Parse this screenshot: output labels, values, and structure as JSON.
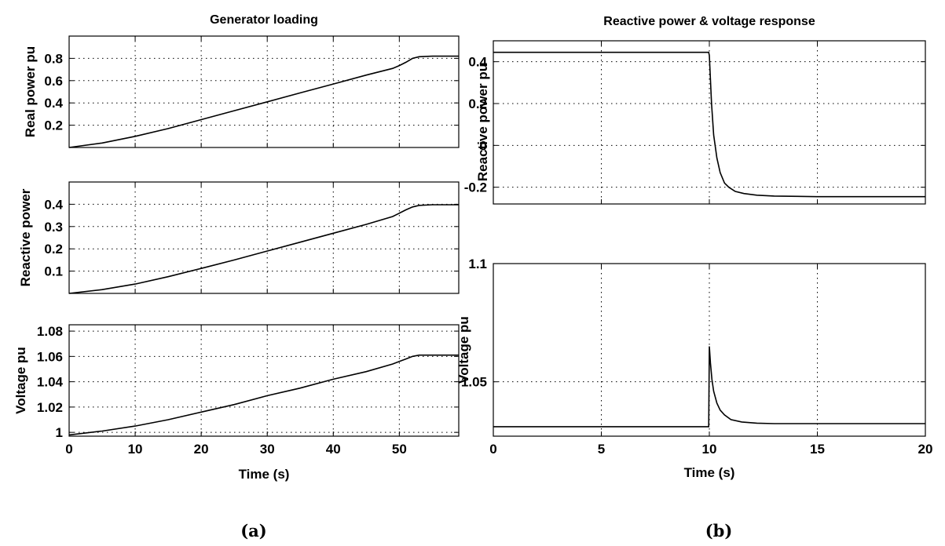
{
  "captions": [
    "(a)",
    "(b)"
  ],
  "chart_data": [
    {
      "type": "line",
      "title": "Generator loading",
      "xlabel": "",
      "ylabel": "Real power pu",
      "xlim": [
        0,
        59
      ],
      "ylim": [
        0,
        1.0
      ],
      "xticks": [
        0,
        10,
        20,
        30,
        40,
        50
      ],
      "xtick_labels": [
        "",
        "",
        "",
        "",
        "",
        ""
      ],
      "yticks": [
        0.2,
        0.4,
        0.6,
        0.8
      ],
      "ytick_labels": [
        "0.2",
        "0.4",
        "0.6",
        "0.8"
      ],
      "grid": true,
      "series": [
        {
          "x": [
            0,
            5,
            10,
            15,
            20,
            25,
            30,
            35,
            40,
            45,
            49,
            50,
            51,
            52,
            53,
            55,
            59
          ],
          "values": [
            0.0,
            0.04,
            0.1,
            0.17,
            0.25,
            0.33,
            0.41,
            0.49,
            0.57,
            0.65,
            0.71,
            0.735,
            0.765,
            0.8,
            0.815,
            0.82,
            0.82
          ]
        }
      ]
    },
    {
      "type": "line",
      "title": "",
      "xlabel": "",
      "ylabel": "Reactive power",
      "xlim": [
        0,
        59
      ],
      "ylim": [
        0,
        0.5
      ],
      "xticks": [
        0,
        10,
        20,
        30,
        40,
        50
      ],
      "xtick_labels": [
        "",
        "",
        "",
        "",
        "",
        ""
      ],
      "yticks": [
        0.1,
        0.2,
        0.3,
        0.4
      ],
      "ytick_labels": [
        "0.1",
        "0.2",
        "0.3",
        "0.4"
      ],
      "grid": true,
      "series": [
        {
          "x": [
            0,
            5,
            10,
            15,
            20,
            25,
            30,
            35,
            40,
            45,
            49,
            50,
            51,
            52,
            53,
            55,
            59
          ],
          "values": [
            0.0,
            0.017,
            0.042,
            0.075,
            0.112,
            0.15,
            0.19,
            0.23,
            0.27,
            0.31,
            0.345,
            0.36,
            0.375,
            0.388,
            0.395,
            0.398,
            0.398
          ]
        }
      ]
    },
    {
      "type": "line",
      "title": "",
      "xlabel": "Time (s)",
      "ylabel": "Voltage pu",
      "xlim": [
        0,
        59
      ],
      "ylim": [
        0.997,
        1.085
      ],
      "xticks": [
        0,
        10,
        20,
        30,
        40,
        50
      ],
      "xtick_labels": [
        "0",
        "10",
        "20",
        "30",
        "40",
        "50"
      ],
      "yticks": [
        1.0,
        1.02,
        1.04,
        1.06,
        1.08
      ],
      "ytick_labels": [
        "1",
        "1.02",
        "1.04",
        "1.06",
        "1.08"
      ],
      "grid": true,
      "series": [
        {
          "x": [
            0,
            5,
            10,
            15,
            20,
            25,
            30,
            35,
            40,
            45,
            49,
            50,
            51,
            52,
            53,
            55,
            59
          ],
          "values": [
            0.998,
            1.001,
            1.005,
            1.01,
            1.016,
            1.022,
            1.029,
            1.035,
            1.042,
            1.048,
            1.054,
            1.056,
            1.058,
            1.06,
            1.061,
            1.061,
            1.061
          ]
        }
      ]
    },
    {
      "type": "line",
      "title": "Reactive power & voltage response",
      "xlabel": "",
      "ylabel": "Reactive power pu",
      "xlim": [
        0,
        20
      ],
      "ylim": [
        -0.28,
        0.5
      ],
      "xticks": [
        0,
        5,
        10,
        15,
        20
      ],
      "xtick_labels": [
        "",
        "",
        "",
        "",
        ""
      ],
      "yticks": [
        -0.2,
        0,
        0.2,
        0.4
      ],
      "ytick_labels": [
        "-0.2",
        "0",
        "0.2",
        "0.4"
      ],
      "grid": true,
      "series": [
        {
          "x": [
            0,
            9.97,
            10.0,
            10.1,
            10.2,
            10.35,
            10.5,
            10.7,
            10.9,
            11.2,
            11.6,
            12.2,
            13,
            15,
            20
          ],
          "values": [
            0.445,
            0.445,
            0.43,
            0.2,
            0.05,
            -0.06,
            -0.13,
            -0.18,
            -0.2,
            -0.22,
            -0.23,
            -0.238,
            -0.242,
            -0.245,
            -0.245
          ]
        }
      ]
    },
    {
      "type": "line",
      "title": "",
      "xlabel": "Time (s)",
      "ylabel": "Voltage pu",
      "xlim": [
        0,
        20
      ],
      "ylim": [
        1.027,
        1.1
      ],
      "xticks": [
        0,
        5,
        10,
        15,
        20
      ],
      "xtick_labels": [
        "0",
        "5",
        "10",
        "15",
        "20"
      ],
      "yticks": [
        1.05,
        1.1
      ],
      "ytick_labels": [
        "1.05",
        "1.1"
      ],
      "grid": true,
      "series": [
        {
          "x": [
            0,
            9.97,
            10.0,
            10.05,
            10.12,
            10.2,
            10.35,
            10.5,
            10.7,
            11.0,
            11.5,
            12.2,
            13,
            15,
            20
          ],
          "values": [
            1.031,
            1.031,
            1.065,
            1.058,
            1.051,
            1.046,
            1.041,
            1.038,
            1.036,
            1.034,
            1.033,
            1.0325,
            1.0323,
            1.0323,
            1.0323
          ]
        }
      ]
    }
  ]
}
